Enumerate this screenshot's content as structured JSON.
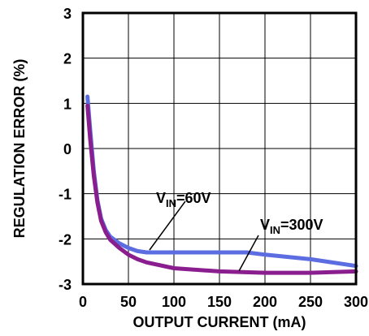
{
  "chart_data": {
    "type": "line",
    "xlabel": "OUTPUT CURRENT (mA)",
    "ylabel": "REGULATION ERROR (%)",
    "xlim": [
      0,
      300
    ],
    "ylim": [
      -3,
      3
    ],
    "xticks": [
      "0",
      "50",
      "100",
      "150",
      "200",
      "250",
      "300"
    ],
    "yticks": [
      "-3",
      "-2",
      "-1",
      "0",
      "1",
      "2",
      "3"
    ],
    "grid": true,
    "series": [
      {
        "name": "VIN=60V",
        "color": "#5b6de0",
        "x": [
          5,
          8,
          12,
          16,
          20,
          25,
          30,
          40,
          50,
          60,
          70,
          100,
          150,
          180,
          200,
          250,
          300
        ],
        "y": [
          1.15,
          0.4,
          -0.5,
          -1.15,
          -1.55,
          -1.8,
          -1.95,
          -2.1,
          -2.2,
          -2.27,
          -2.3,
          -2.3,
          -2.3,
          -2.3,
          -2.35,
          -2.45,
          -2.6
        ]
      },
      {
        "name": "VIN=300V",
        "color": "#8a1e8e",
        "x": [
          5,
          8,
          12,
          16,
          20,
          25,
          30,
          40,
          50,
          60,
          70,
          100,
          150,
          200,
          250,
          300
        ],
        "y": [
          0.95,
          0.2,
          -0.6,
          -1.2,
          -1.6,
          -1.85,
          -2.02,
          -2.2,
          -2.35,
          -2.45,
          -2.52,
          -2.65,
          -2.72,
          -2.75,
          -2.75,
          -2.72
        ]
      }
    ],
    "annotations": [
      {
        "main": "V",
        "sub": "IN",
        "rest": "=60V"
      },
      {
        "main": "V",
        "sub": "IN",
        "rest": "=300V"
      }
    ]
  }
}
